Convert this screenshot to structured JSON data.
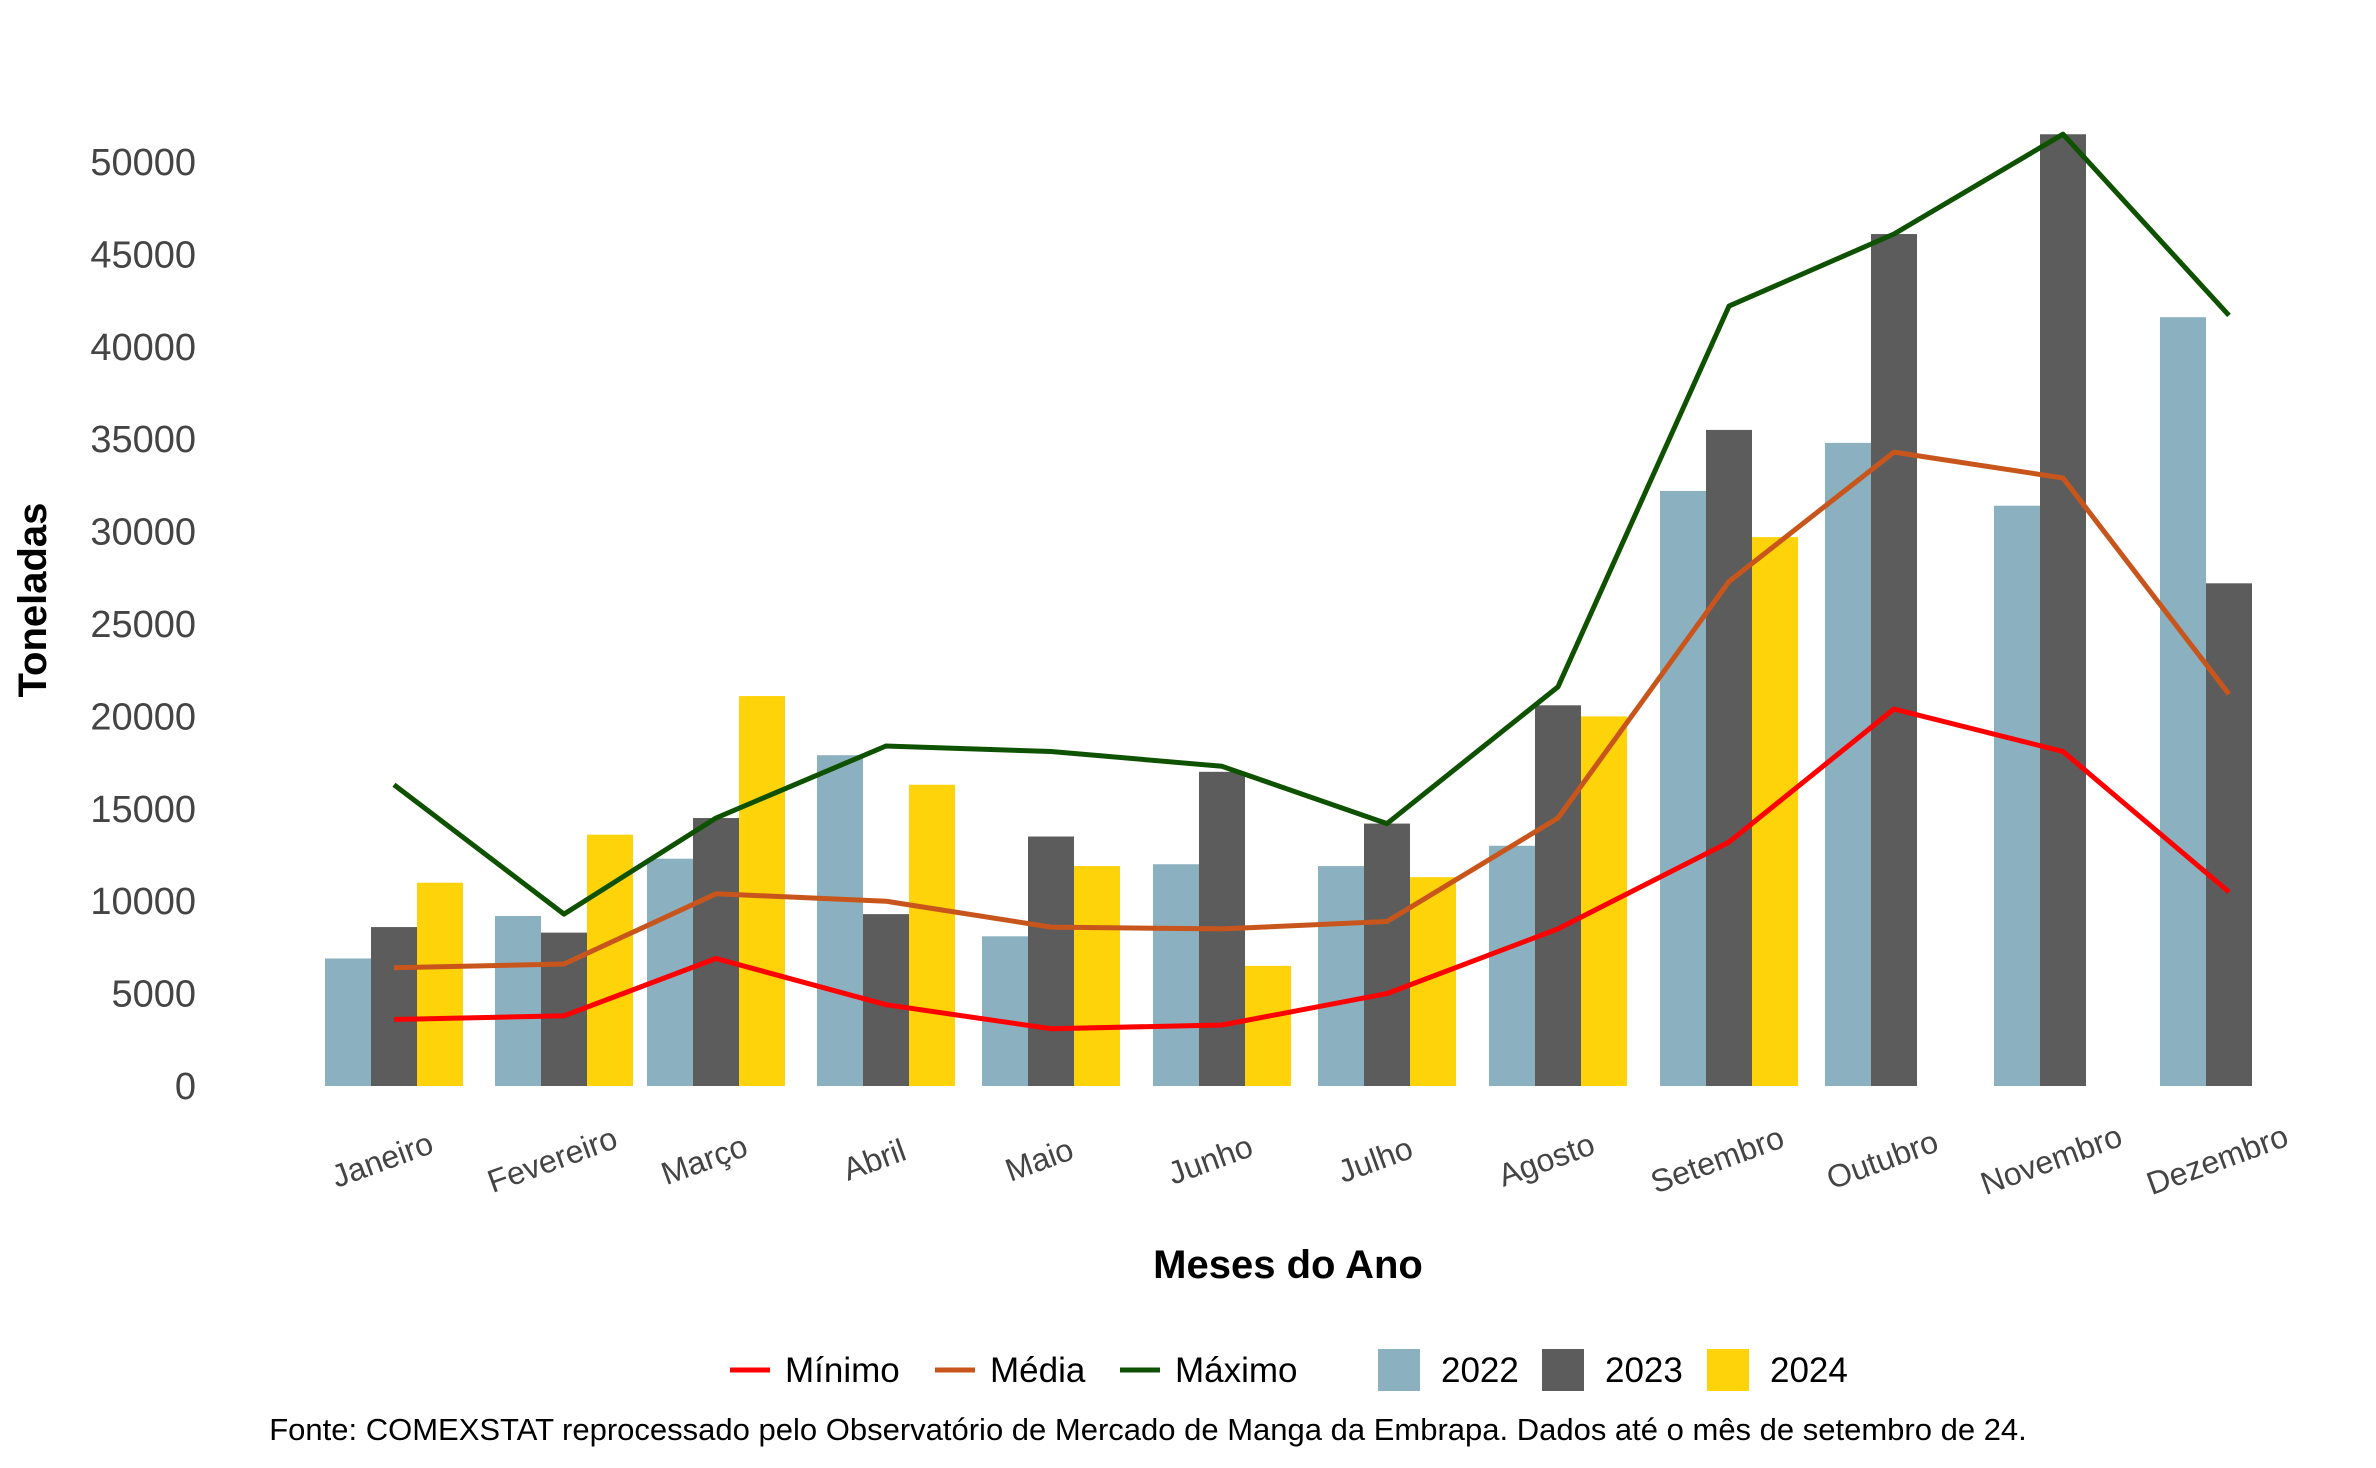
{
  "chart_data": {
    "type": "bar",
    "categories": [
      "Janeiro",
      "Fevereiro",
      "Março",
      "Abril",
      "Maio",
      "Junho",
      "Julho",
      "Agosto",
      "Setembro",
      "Outubro",
      "Novembro",
      "Dezembro"
    ],
    "series": [
      {
        "name": "2022",
        "kind": "bar",
        "color": "#8BB0C0",
        "values": [
          6900,
          9200,
          12300,
          17900,
          8100,
          12000,
          11900,
          13000,
          32200,
          34800,
          31400,
          41600
        ]
      },
      {
        "name": "2023",
        "kind": "bar",
        "color": "#5C5C5C",
        "values": [
          8600,
          8300,
          14500,
          9300,
          13500,
          17000,
          14200,
          20600,
          35500,
          46100,
          51500,
          27200
        ]
      },
      {
        "name": "2024",
        "kind": "bar",
        "color": "#FFD30A",
        "values": [
          11000,
          13600,
          21100,
          16300,
          11900,
          6500,
          11300,
          20000,
          29700,
          null,
          null,
          null
        ]
      },
      {
        "name": "Mínimo",
        "kind": "line",
        "color": "#FF0000",
        "values": [
          3600,
          3800,
          6900,
          4400,
          3100,
          3300,
          5000,
          8500,
          13200,
          20400,
          18100,
          10500
        ]
      },
      {
        "name": "Média",
        "kind": "line",
        "color": "#C8561C",
        "values": [
          6400,
          6600,
          10400,
          10000,
          8600,
          8500,
          8900,
          14500,
          27300,
          34300,
          32900,
          21200
        ]
      },
      {
        "name": "Máximo",
        "kind": "line",
        "color": "#0E5200",
        "values": [
          16300,
          9300,
          14500,
          18400,
          18100,
          17300,
          14200,
          21600,
          42200,
          46100,
          51500,
          41700
        ]
      }
    ],
    "ylabel": "Toneladas",
    "xlabel": "Meses do Ano",
    "ylim": [
      0,
      52000
    ],
    "yticks": [
      0,
      5000,
      10000,
      15000,
      20000,
      25000,
      30000,
      35000,
      40000,
      45000,
      50000
    ],
    "legend_position": "bottom",
    "legend_order": [
      "Mínimo",
      "Média",
      "Máximo",
      "2022",
      "2023",
      "2024"
    ],
    "grid": false,
    "source_note": "Fonte: COMEXSTAT reprocessado pelo Observatório de Mercado de Manga da Embrapa. Dados até o mês de setembro de 24."
  }
}
